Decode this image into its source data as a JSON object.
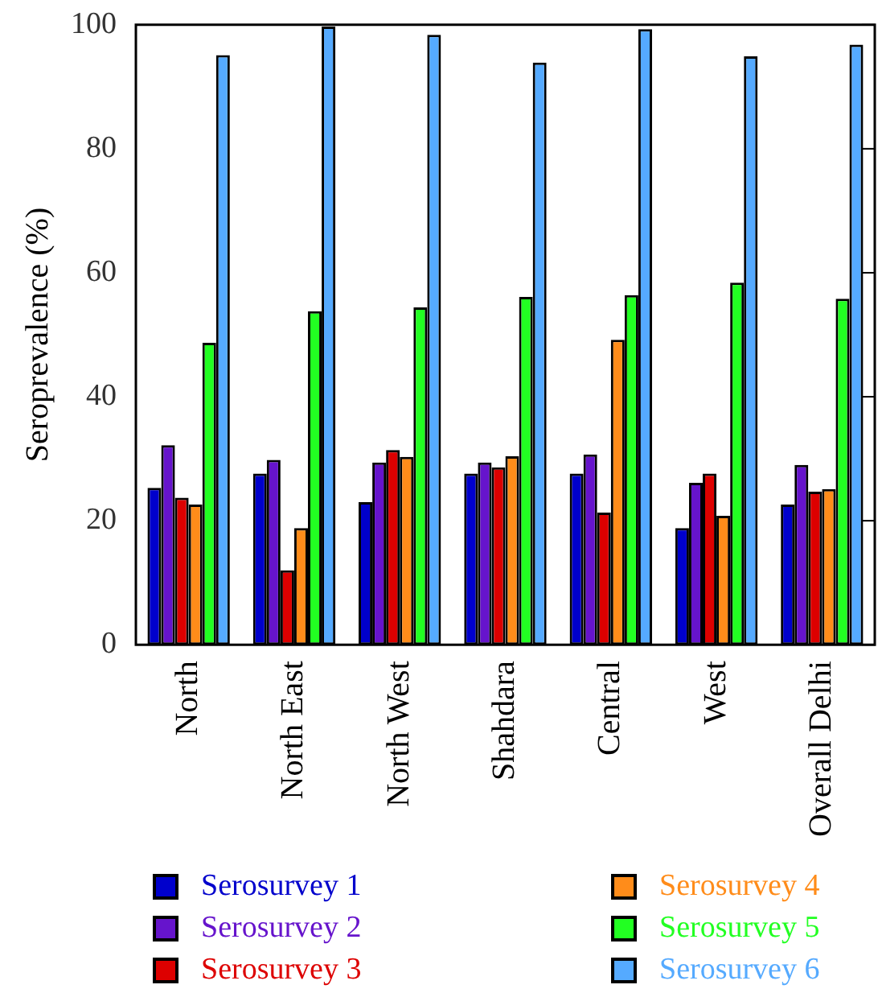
{
  "chart_data": {
    "type": "bar",
    "ylabel": "Seroprevalence (%)",
    "categories": [
      "North",
      "North East",
      "North West",
      "Shahdara",
      "Central",
      "West",
      "Overall Delhi"
    ],
    "series": [
      {
        "name": "Serosurvey 1",
        "color": "#0000cc",
        "values": [
          25.3,
          27.6,
          23,
          27.6,
          27.6,
          18.8,
          22.6
        ]
      },
      {
        "name": "Serosurvey 2",
        "color": "#6614cc",
        "values": [
          32.2,
          29.8,
          29.4,
          29.4,
          30.7,
          26.1,
          29
        ]
      },
      {
        "name": "Serosurvey 3",
        "color": "#dd0000",
        "values": [
          23.7,
          12,
          31.4,
          28.6,
          21.3,
          27.6,
          24.7
        ]
      },
      {
        "name": "Serosurvey 4",
        "color": "#ff8c1a",
        "values": [
          22.6,
          18.8,
          30.3,
          30.4,
          49.2,
          20.8,
          25.1
        ]
      },
      {
        "name": "Serosurvey 5",
        "color": "#22ff22",
        "values": [
          48.7,
          53.8,
          54.4,
          56.1,
          56.4,
          58.4,
          55.8
        ]
      },
      {
        "name": "Serosurvey 6",
        "color": "#55aaff",
        "values": [
          95.1,
          99.7,
          98.4,
          93.9,
          99.3,
          94.9,
          96.8
        ]
      }
    ],
    "ylim": [
      0,
      100
    ],
    "yticks": [
      0,
      20,
      40,
      60,
      80,
      100
    ],
    "grid": false,
    "legend": "bottom"
  }
}
